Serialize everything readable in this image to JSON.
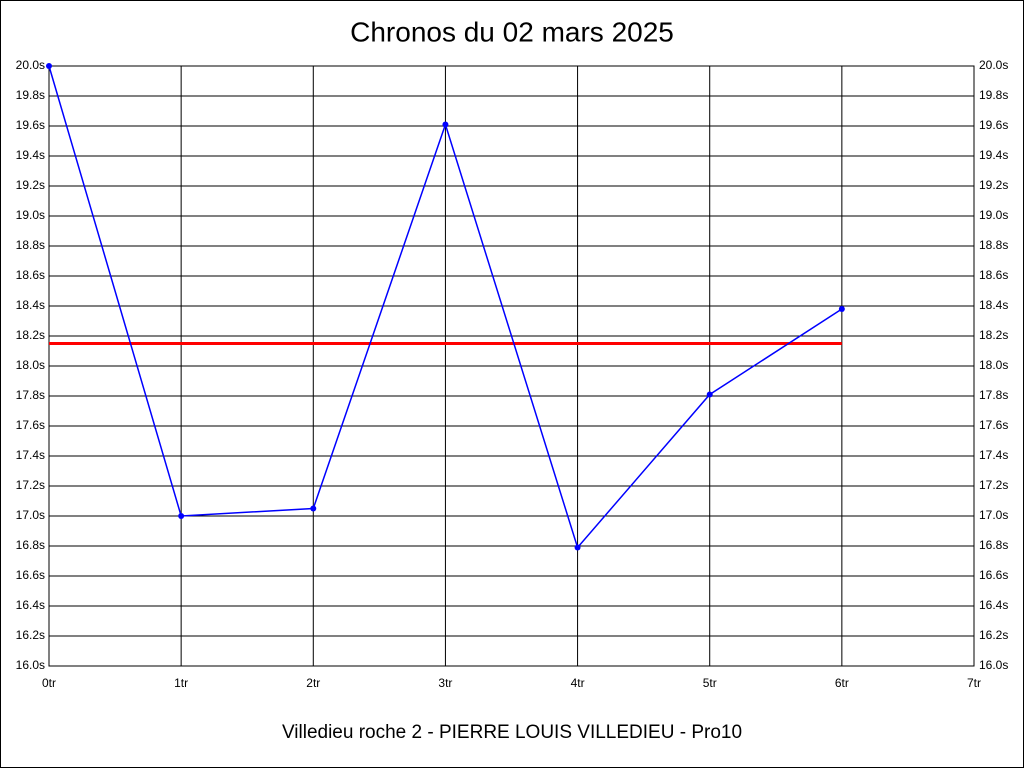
{
  "chart_data": {
    "type": "line",
    "title": "Chronos du 02 mars 2025",
    "subtitle": "Villedieu roche 2 - PIERRE LOUIS VILLEDIEU - Pro10",
    "x": [
      0,
      1,
      2,
      3,
      4,
      5,
      6
    ],
    "series": [
      {
        "color": "#0000ff",
        "values": [
          20.0,
          17.0,
          17.05,
          19.61,
          16.79,
          17.81,
          18.38
        ]
      }
    ],
    "hline": {
      "value": 18.15,
      "color": "#ff0000"
    },
    "xlim": [
      0,
      7
    ],
    "xticks": [
      {
        "value": 0,
        "label": "0tr"
      },
      {
        "value": 1,
        "label": "1tr"
      },
      {
        "value": 2,
        "label": "2tr"
      },
      {
        "value": 3,
        "label": "3tr"
      },
      {
        "value": 4,
        "label": "4tr"
      },
      {
        "value": 5,
        "label": "5tr"
      },
      {
        "value": 6,
        "label": "6tr"
      },
      {
        "value": 7,
        "label": "7tr"
      }
    ],
    "ylim": [
      16.0,
      20.0
    ],
    "yticks": [
      {
        "value": 16.0,
        "label": "16.0s"
      },
      {
        "value": 16.2,
        "label": "16.2s"
      },
      {
        "value": 16.4,
        "label": "16.4s"
      },
      {
        "value": 16.6,
        "label": "16.6s"
      },
      {
        "value": 16.8,
        "label": "16.8s"
      },
      {
        "value": 17.0,
        "label": "17.0s"
      },
      {
        "value": 17.2,
        "label": "17.2s"
      },
      {
        "value": 17.4,
        "label": "17.4s"
      },
      {
        "value": 17.6,
        "label": "17.6s"
      },
      {
        "value": 17.8,
        "label": "17.8s"
      },
      {
        "value": 18.0,
        "label": "18.0s"
      },
      {
        "value": 18.2,
        "label": "18.2s"
      },
      {
        "value": 18.4,
        "label": "18.4s"
      },
      {
        "value": 18.6,
        "label": "18.6s"
      },
      {
        "value": 18.8,
        "label": "18.8s"
      },
      {
        "value": 19.0,
        "label": "19.0s"
      },
      {
        "value": 19.2,
        "label": "19.2s"
      },
      {
        "value": 19.4,
        "label": "19.4s"
      },
      {
        "value": 19.6,
        "label": "19.6s"
      },
      {
        "value": 19.8,
        "label": "19.8s"
      },
      {
        "value": 20.0,
        "label": "20.0s"
      }
    ],
    "grid": true
  }
}
